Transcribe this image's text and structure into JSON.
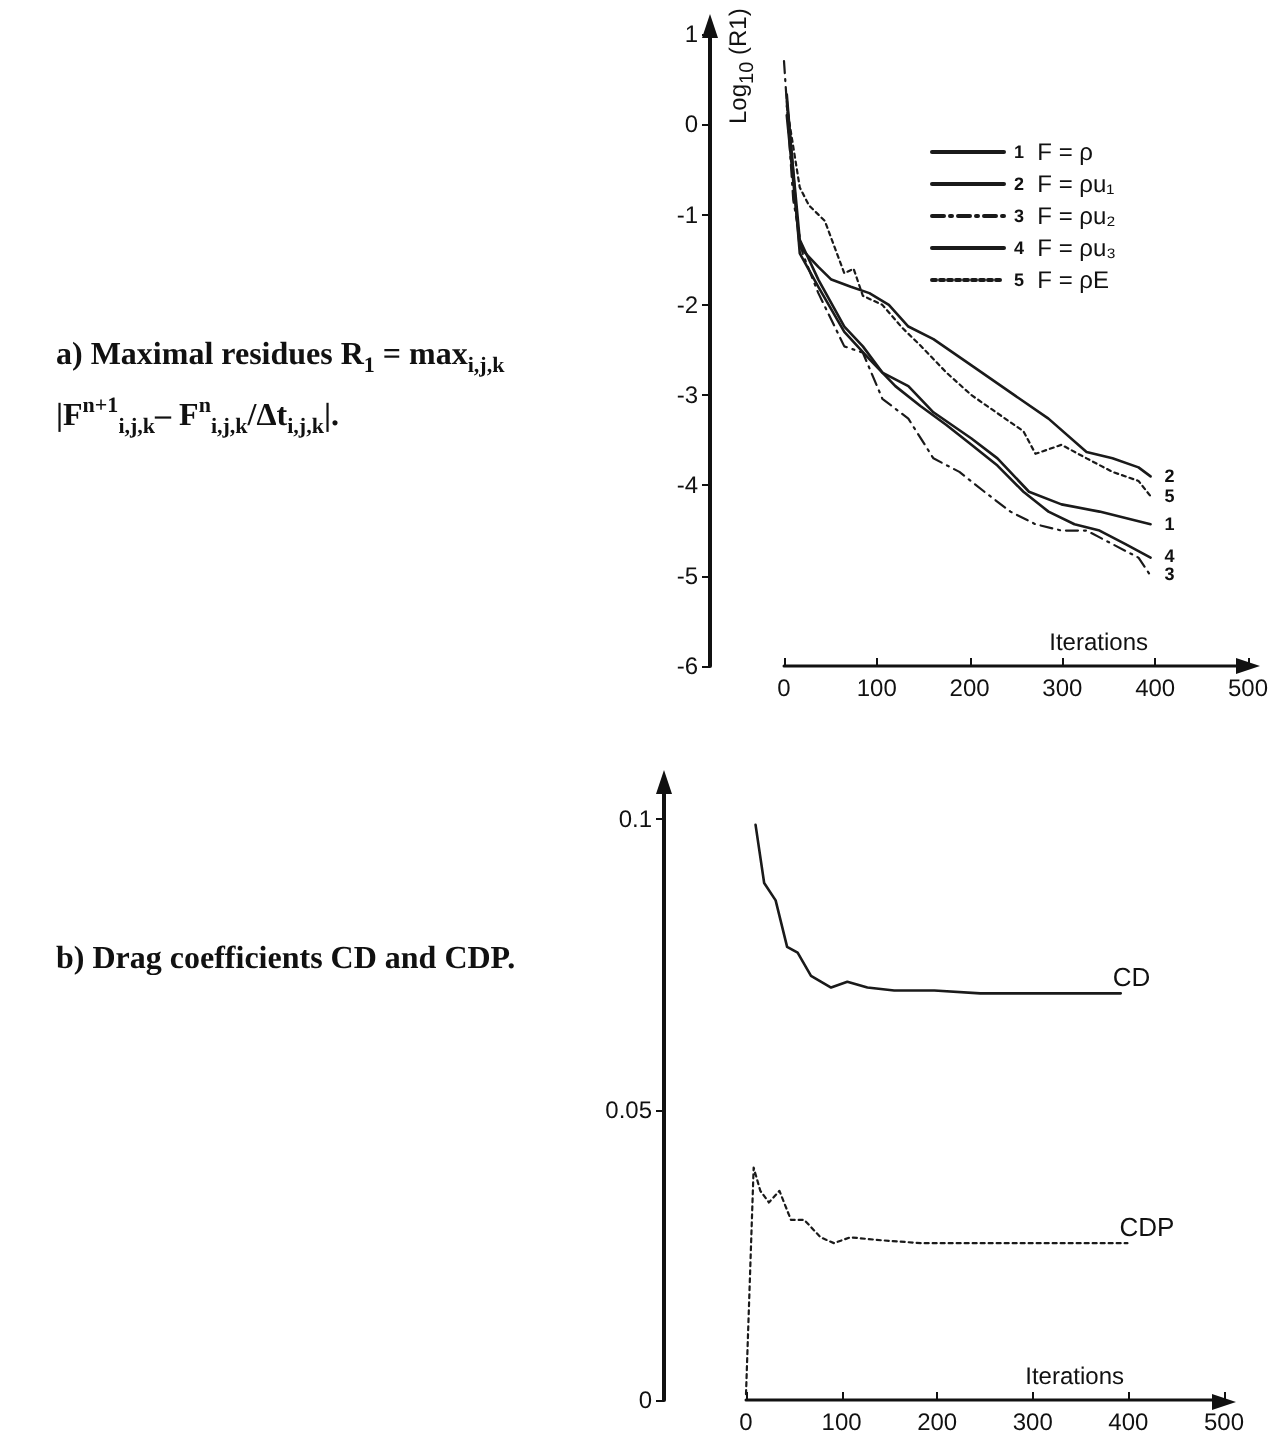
{
  "chart_data": [
    {
      "type": "line",
      "ylabel": "Log$_{10}$ (R1)",
      "xlabel": "Iterations",
      "xlim": [
        0,
        500
      ],
      "xticks": [
        0,
        100,
        200,
        300,
        400,
        500
      ],
      "ylim": [
        -6,
        1
      ],
      "yticks": [
        -6,
        -5,
        -4,
        -3,
        -2,
        -1,
        0,
        1
      ],
      "grid": false,
      "legend": "top",
      "marker": "none",
      "annotations": [
        "a) Maximal residues R$_{1}$ = max$_{i,j,k}$ |F$^{n+1}$$_{i,j,k}$– F$^{n}$$_{i,j,k}$/Δt$_{i,j,k}$|.",
        "1",
        "2",
        "3",
        "4",
        "5"
      ],
      "series": [
        {
          "name": "F = ρ",
          "color": "#1a1a1a",
          "line_style": "solid",
          "x": [
            3,
            17,
            37,
            65,
            85,
            106,
            134,
            161,
            202,
            230,
            264,
            299,
            340,
            368,
            395
          ],
          "values": [
            0.26,
            -1.28,
            -1.72,
            -2.24,
            -2.46,
            -2.75,
            -2.9,
            -3.19,
            -3.48,
            -3.7,
            -4.07,
            -4.21,
            -4.29,
            -4.36,
            -4.43
          ]
        },
        {
          "name": "F = ρu₁",
          "color": "#1a1a1a",
          "line_style": "solid",
          "x": [
            3,
            17,
            37,
            51,
            72,
            92,
            113,
            134,
            161,
            202,
            244,
            285,
            326,
            354,
            382,
            395
          ],
          "values": [
            0.1,
            -1.36,
            -1.58,
            -1.72,
            -1.8,
            -1.87,
            -2.0,
            -2.24,
            -2.38,
            -2.67,
            -2.97,
            -3.26,
            -3.63,
            -3.7,
            -3.8,
            -3.9
          ]
        },
        {
          "name": "F = ρu₂",
          "color": "#1a1a1a",
          "line_style": "dashed",
          "x": [
            0,
            10,
            20,
            37,
            65,
            85,
            106,
            134,
            161,
            189,
            216,
            244,
            271,
            299,
            326,
            354,
            382,
            395
          ],
          "values": [
            0.7,
            -0.84,
            -1.43,
            -1.87,
            -2.46,
            -2.53,
            -3.04,
            -3.26,
            -3.7,
            -3.85,
            -4.07,
            -4.29,
            -4.43,
            -4.5,
            -4.5,
            -4.65,
            -4.8,
            -5.0
          ]
        },
        {
          "name": "F = ρu₃",
          "color": "#1a1a1a",
          "line_style": "solid",
          "x": [
            3,
            17,
            37,
            65,
            92,
            120,
            147,
            175,
            202,
            230,
            258,
            285,
            313,
            340,
            368,
            395
          ],
          "values": [
            0.33,
            -1.43,
            -1.8,
            -2.3,
            -2.6,
            -2.9,
            -3.12,
            -3.33,
            -3.55,
            -3.78,
            -4.07,
            -4.29,
            -4.43,
            -4.5,
            -4.65,
            -4.8
          ]
        },
        {
          "name": "F = ρE",
          "color": "#1a1a1a",
          "line_style": "dotted",
          "x": [
            3,
            17,
            27,
            44,
            65,
            75,
            85,
            106,
            127,
            147,
            175,
            202,
            230,
            258,
            271,
            299,
            326,
            354,
            382,
            395
          ],
          "values": [
            0.2,
            -0.7,
            -0.9,
            -1.07,
            -1.65,
            -1.6,
            -1.9,
            -2.0,
            -2.25,
            -2.45,
            -2.75,
            -3.0,
            -3.2,
            -3.4,
            -3.65,
            -3.55,
            -3.7,
            -3.85,
            -3.95,
            -4.12
          ]
        }
      ]
    },
    {
      "type": "line",
      "xlabel": "Iterations",
      "xlim": [
        0,
        500
      ],
      "xticks": [
        0,
        100,
        200,
        300,
        400,
        500
      ],
      "ylim": [
        0,
        0.105
      ],
      "yticks": [
        0,
        0.05,
        0.1
      ],
      "grid": false,
      "legend": false,
      "marker": "none",
      "annotations": [
        "b) Drag coefficients CD and CDP."
      ],
      "series": [
        {
          "name": "CD",
          "color": "#1a1a1a",
          "line_style": "solid",
          "x": [
            10,
            19,
            31,
            43,
            54,
            68,
            89,
            106,
            127,
            155,
            197,
            245,
            392
          ],
          "values": [
            0.099,
            0.089,
            0.086,
            0.078,
            0.077,
            0.073,
            0.071,
            0.072,
            0.071,
            0.0705,
            0.0705,
            0.07,
            0.07
          ]
        },
        {
          "name": "CDP",
          "color": "#1a1a1a",
          "line_style": "dotted",
          "x": [
            0,
            8,
            15,
            24,
            35,
            47,
            61,
            78,
            92,
            109,
            141,
            183,
            266,
            399
          ],
          "values": [
            0.001,
            0.04,
            0.036,
            0.034,
            0.036,
            0.031,
            0.031,
            0.028,
            0.027,
            0.028,
            0.0275,
            0.027,
            0.027,
            0.027
          ]
        }
      ]
    }
  ]
}
